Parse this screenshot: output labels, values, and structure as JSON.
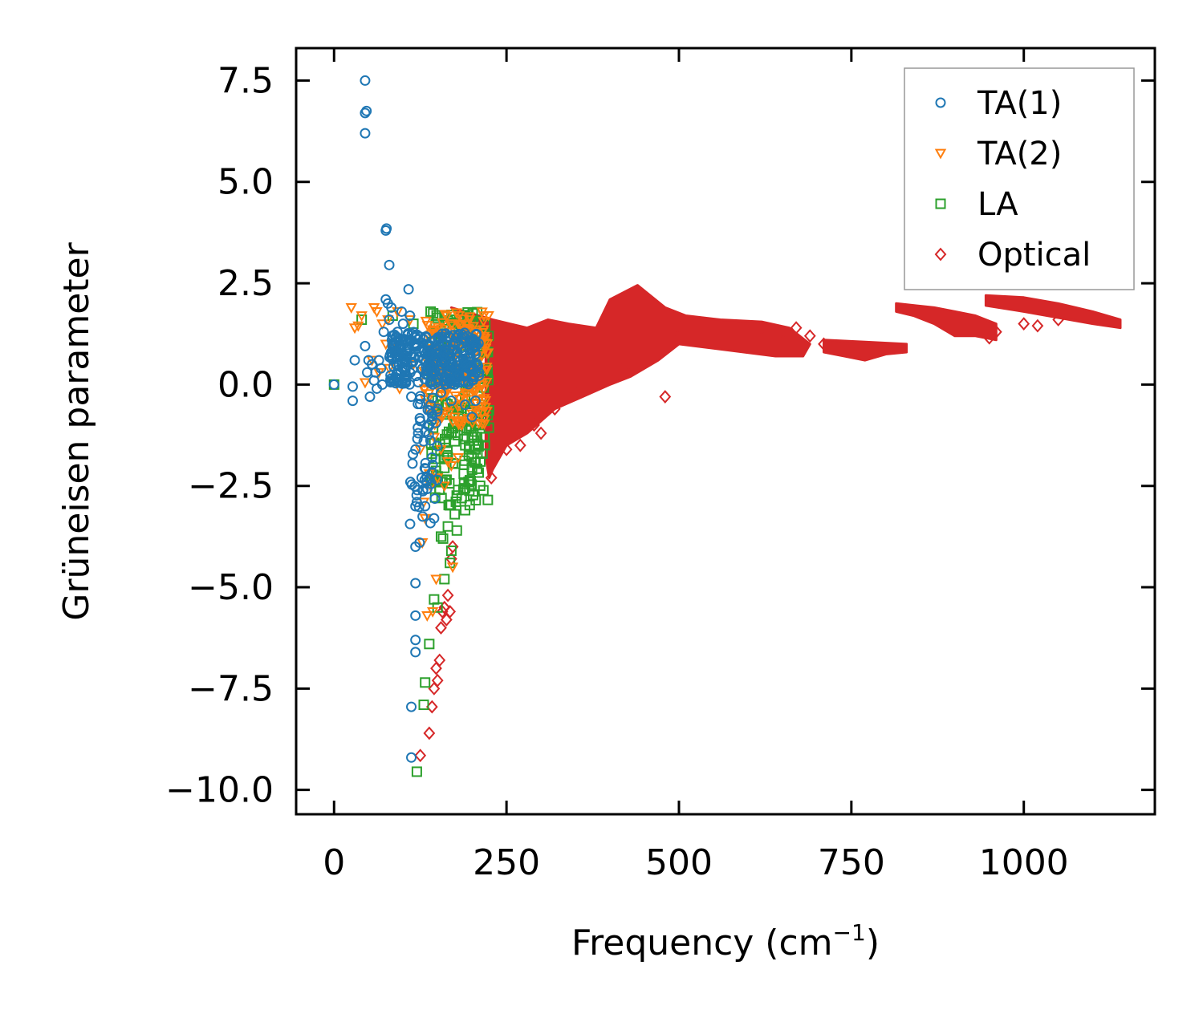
{
  "chart_data": {
    "type": "scatter",
    "title": "",
    "xlabel": "Frequency (cm",
    "xlabel_sup": "−1",
    "xlabel_close": ")",
    "ylabel": "Grüneisen parameter",
    "xlim": [
      -55,
      1190
    ],
    "ylim": [
      -10.6,
      8.3
    ],
    "xticks": [
      0,
      250,
      500,
      750,
      1000
    ],
    "xtick_labels": [
      "0",
      "250",
      "500",
      "750",
      "1000"
    ],
    "yticks": [
      7.5,
      5.0,
      2.5,
      0.0,
      -2.5,
      -5.0,
      -7.5,
      -10.0
    ],
    "ytick_labels": [
      "7.5",
      "5.0",
      "2.5",
      "0.0",
      "−2.5",
      "−5.0",
      "−7.5",
      "−10.0"
    ],
    "grid": false,
    "legend_position": "top-right",
    "series": [
      {
        "name": "TA(1)",
        "color": "#1f77b4",
        "marker": "circle",
        "points": [
          [
            0,
            0
          ],
          [
            27,
            -0.05
          ],
          [
            27,
            -0.4
          ],
          [
            30,
            0.6
          ],
          [
            45,
            7.5
          ],
          [
            45,
            6.7
          ],
          [
            47,
            6.75
          ],
          [
            45,
            6.2
          ],
          [
            45,
            0.95
          ],
          [
            48,
            0.3
          ],
          [
            50,
            0.6
          ],
          [
            52,
            -0.3
          ],
          [
            55,
            0.5
          ],
          [
            58,
            0.1
          ],
          [
            60,
            0.3
          ],
          [
            62,
            -0.1
          ],
          [
            65,
            0.6
          ],
          [
            68,
            0.4
          ],
          [
            70,
            0.0
          ],
          [
            72,
            1.3
          ],
          [
            75,
            3.8
          ],
          [
            76,
            3.85
          ],
          [
            80,
            2.95
          ],
          [
            75,
            2.1
          ],
          [
            78,
            2.0
          ],
          [
            80,
            1.6
          ],
          [
            83,
            1.9
          ],
          [
            85,
            1.2
          ],
          [
            88,
            0.8
          ],
          [
            90,
            0.5
          ],
          [
            92,
            1.3
          ],
          [
            95,
            0.9
          ],
          [
            98,
            1.8
          ],
          [
            100,
            1.5
          ],
          [
            103,
            0.7
          ],
          [
            105,
            1.1
          ],
          [
            108,
            2.35
          ],
          [
            110,
            1.7
          ],
          [
            112,
            -0.3
          ],
          [
            112,
            -7.95
          ],
          [
            112,
            -9.2
          ],
          [
            118,
            -1.6
          ],
          [
            118,
            -3.0
          ],
          [
            118,
            -4.0
          ],
          [
            118,
            -4.9
          ],
          [
            118,
            -5.7
          ],
          [
            118,
            -6.3
          ],
          [
            118,
            -6.6
          ],
          [
            120,
            -2.9
          ],
          [
            122,
            -1.2
          ],
          [
            124,
            -3.9
          ],
          [
            125,
            -0.9
          ],
          [
            127,
            -2.3
          ],
          [
            130,
            -1.4
          ],
          [
            132,
            -3.0
          ],
          [
            134,
            -2.4
          ],
          [
            136,
            -1.0
          ],
          [
            140,
            -0.5
          ],
          [
            142,
            -1.8
          ],
          [
            145,
            -3.3
          ],
          [
            150,
            -0.6
          ],
          [
            155,
            -0.2
          ],
          [
            160,
            0.1
          ],
          [
            165,
            0.3
          ],
          [
            170,
            -0.4
          ],
          [
            180,
            0.2
          ],
          [
            190,
            -0.5
          ],
          [
            200,
            -0.8
          ],
          [
            205,
            -0.4
          ],
          [
            210,
            0.3
          ]
        ],
        "clusters": [
          {
            "x": [
              80,
              210
            ],
            "y": [
              0.0,
              1.3
            ],
            "count": 320
          },
          {
            "x": [
              110,
              150
            ],
            "y": [
              -3.5,
              0.0
            ],
            "count": 45
          }
        ]
      },
      {
        "name": "TA(2)",
        "color": "#ff7f0e",
        "marker": "triangle-down",
        "points": [
          [
            25,
            1.9
          ],
          [
            30,
            1.4
          ],
          [
            35,
            1.45
          ],
          [
            40,
            1.7
          ],
          [
            45,
            0.05
          ],
          [
            55,
            0.6
          ],
          [
            58,
            1.9
          ],
          [
            62,
            1.8
          ],
          [
            65,
            0.3
          ],
          [
            70,
            1.5
          ],
          [
            75,
            1.0
          ],
          [
            78,
            1.6
          ],
          [
            80,
            0.4
          ],
          [
            85,
            0.9
          ],
          [
            92,
            1.8
          ],
          [
            95,
            -0.1
          ],
          [
            110,
            1.6
          ],
          [
            115,
            0.5
          ],
          [
            125,
            -1.6
          ],
          [
            128,
            -3.9
          ],
          [
            130,
            -2.9
          ],
          [
            132,
            -3.3
          ],
          [
            135,
            -5.7
          ],
          [
            138,
            -2.2
          ],
          [
            140,
            -2.5
          ],
          [
            143,
            -5.6
          ],
          [
            145,
            -1.3
          ],
          [
            148,
            -4.8
          ],
          [
            150,
            -2.3
          ],
          [
            155,
            -1.6
          ],
          [
            160,
            -2.5
          ],
          [
            165,
            -1.9
          ],
          [
            170,
            -2.0
          ],
          [
            172,
            -4.5
          ],
          [
            175,
            -0.8
          ],
          [
            180,
            -1.8
          ],
          [
            185,
            -1.0
          ],
          [
            190,
            -0.2
          ],
          [
            200,
            0.3
          ],
          [
            205,
            0.8
          ],
          [
            210,
            0.1
          ],
          [
            215,
            1.1
          ],
          [
            220,
            0.9
          ]
        ],
        "clusters": [
          {
            "x": [
              130,
              225
            ],
            "y": [
              -1.0,
              1.8
            ],
            "count": 180
          }
        ]
      },
      {
        "name": "LA",
        "color": "#2ca02c",
        "marker": "square",
        "points": [
          [
            0,
            0
          ],
          [
            40,
            1.6
          ],
          [
            85,
            1.7
          ],
          [
            115,
            1.5
          ],
          [
            120,
            -9.55
          ],
          [
            130,
            -7.9
          ],
          [
            132,
            -7.35
          ],
          [
            138,
            -6.4
          ],
          [
            145,
            -5.3
          ],
          [
            150,
            -5.5
          ],
          [
            155,
            -3.75
          ],
          [
            158,
            -3.8
          ],
          [
            160,
            -4.8
          ],
          [
            165,
            -3.5
          ],
          [
            168,
            -4.4
          ],
          [
            170,
            -4.1
          ],
          [
            175,
            -3.2
          ],
          [
            178,
            -3.6
          ],
          [
            180,
            -2.6
          ],
          [
            185,
            -2.8
          ],
          [
            188,
            -2.2
          ],
          [
            190,
            -3.1
          ],
          [
            195,
            -2.4
          ],
          [
            200,
            -2.1
          ],
          [
            205,
            -1.6
          ],
          [
            210,
            -1.0
          ],
          [
            212,
            -1.9
          ],
          [
            215,
            -0.5
          ],
          [
            218,
            -1.3
          ],
          [
            220,
            0.2
          ],
          [
            222,
            0.8
          ],
          [
            224,
            1.2
          ],
          [
            140,
            1.8
          ],
          [
            150,
            1.65
          ],
          [
            160,
            1.7
          ],
          [
            170,
            1.6
          ],
          [
            180,
            1.5
          ],
          [
            190,
            1.4
          ],
          [
            200,
            1.5
          ],
          [
            210,
            1.3
          ],
          [
            165,
            -1.8
          ],
          [
            175,
            -1.4
          ]
        ],
        "clusters": [
          {
            "x": [
              140,
              225
            ],
            "y": [
              -3.0,
              1.8
            ],
            "count": 200
          }
        ]
      },
      {
        "name": "Optical",
        "color": "#d62728",
        "marker": "diamond",
        "points": [
          [
            125,
            -9.15
          ],
          [
            138,
            -8.6
          ],
          [
            142,
            -7.95
          ],
          [
            145,
            -7.5
          ],
          [
            148,
            -7.0
          ],
          [
            150,
            -7.3
          ],
          [
            153,
            -6.8
          ],
          [
            155,
            -6.0
          ],
          [
            157,
            -5.6
          ],
          [
            160,
            -5.5
          ],
          [
            163,
            -5.8
          ],
          [
            165,
            -5.2
          ],
          [
            168,
            -5.6
          ],
          [
            170,
            -4.3
          ],
          [
            172,
            -4.0
          ],
          [
            228,
            -2.3
          ],
          [
            250,
            -1.6
          ],
          [
            270,
            -1.5
          ],
          [
            290,
            -1.0
          ],
          [
            300,
            -1.2
          ],
          [
            320,
            -0.6
          ],
          [
            350,
            -0.2
          ],
          [
            420,
            0.4
          ],
          [
            480,
            -0.3
          ],
          [
            500,
            1.2
          ],
          [
            620,
            1.4
          ],
          [
            650,
            1.3
          ],
          [
            670,
            1.4
          ],
          [
            690,
            1.2
          ],
          [
            710,
            1.0
          ],
          [
            950,
            1.15
          ],
          [
            960,
            1.3
          ],
          [
            1000,
            1.5
          ],
          [
            1020,
            1.45
          ],
          [
            1050,
            1.6
          ]
        ],
        "regions": [
          {
            "polygon": [
              [
                170,
                1.9
              ],
              [
                230,
                1.6
              ],
              [
                280,
                1.4
              ],
              [
                310,
                1.6
              ],
              [
                340,
                1.5
              ],
              [
                380,
                1.4
              ],
              [
                400,
                2.1
              ],
              [
                440,
                2.45
              ],
              [
                480,
                1.9
              ],
              [
                510,
                1.7
              ],
              [
                560,
                1.6
              ],
              [
                620,
                1.55
              ],
              [
                660,
                1.4
              ],
              [
                690,
                1.0
              ],
              [
                680,
                0.7
              ],
              [
                640,
                0.7
              ],
              [
                570,
                0.85
              ],
              [
                500,
                1.0
              ],
              [
                470,
                0.6
              ],
              [
                430,
                0.2
              ],
              [
                400,
                0.0
              ],
              [
                360,
                -0.3
              ],
              [
                320,
                -0.6
              ],
              [
                280,
                -1.2
              ],
              [
                250,
                -1.5
              ],
              [
                230,
                -2.1
              ],
              [
                225,
                -2.3
              ],
              [
                220,
                -1.8
              ],
              [
                220,
                1.2
              ]
            ]
          },
          {
            "polygon": [
              [
                710,
                1.1
              ],
              [
                770,
                1.05
              ],
              [
                830,
                1.0
              ],
              [
                830,
                0.8
              ],
              [
                800,
                0.75
              ],
              [
                770,
                0.6
              ],
              [
                740,
                0.7
              ],
              [
                710,
                0.8
              ]
            ]
          },
          {
            "polygon": [
              [
                815,
                2.0
              ],
              [
                870,
                1.9
              ],
              [
                900,
                1.8
              ],
              [
                930,
                1.7
              ],
              [
                960,
                1.5
              ],
              [
                960,
                1.1
              ],
              [
                930,
                1.2
              ],
              [
                900,
                1.2
              ],
              [
                870,
                1.5
              ],
              [
                840,
                1.7
              ],
              [
                815,
                1.8
              ]
            ]
          },
          {
            "polygon": [
              [
                945,
                2.2
              ],
              [
                1000,
                2.15
              ],
              [
                1050,
                2.0
              ],
              [
                1100,
                1.8
              ],
              [
                1140,
                1.6
              ],
              [
                1140,
                1.4
              ],
              [
                1100,
                1.5
              ],
              [
                1050,
                1.65
              ],
              [
                1000,
                1.8
              ],
              [
                945,
                1.95
              ]
            ]
          }
        ]
      }
    ]
  }
}
